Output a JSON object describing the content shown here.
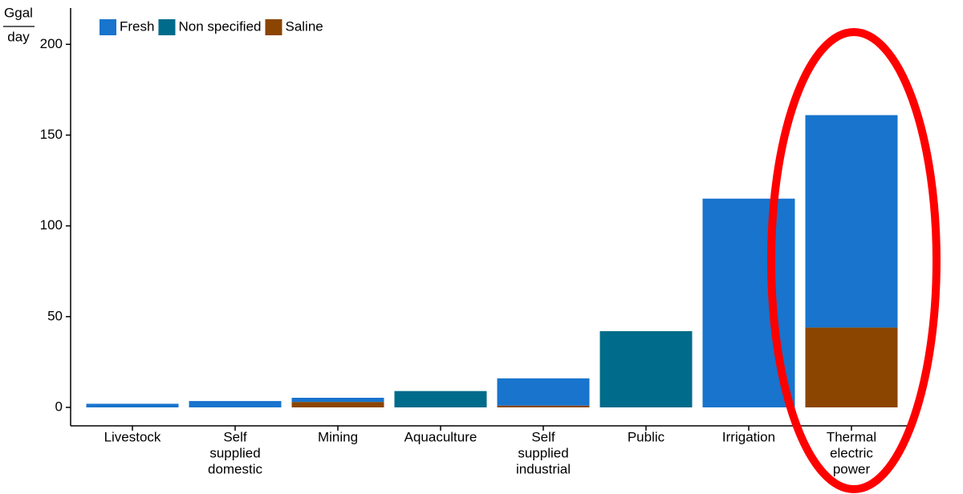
{
  "chart_data": {
    "type": "stacked_bar",
    "y_label": [
      "Ggal",
      "day"
    ],
    "categories": [
      [
        "Livestock"
      ],
      [
        "Self",
        "supplied",
        "domestic"
      ],
      [
        "Mining"
      ],
      [
        "Aquaculture"
      ],
      [
        "Self",
        "supplied",
        "industrial"
      ],
      [
        "Public"
      ],
      [
        "Irrigation"
      ],
      [
        "Thermal",
        "electric",
        "power"
      ]
    ],
    "series": [
      {
        "name": "Saline",
        "color": "#8b4500",
        "values": [
          null,
          null,
          3,
          null,
          1,
          null,
          null,
          44
        ]
      },
      {
        "name": "Fresh",
        "color": "#1874cd",
        "values": [
          2,
          3.5,
          2.3,
          null,
          15,
          null,
          115,
          117
        ]
      },
      {
        "name": "Non specified",
        "color": "#006b8a",
        "values": [
          null,
          null,
          null,
          9,
          null,
          42,
          null,
          null
        ]
      }
    ],
    "legend_order": [
      1,
      2,
      0
    ],
    "ylim": [
      0,
      220
    ],
    "yticks": [
      0,
      50,
      100,
      150,
      200
    ],
    "grid": false
  }
}
